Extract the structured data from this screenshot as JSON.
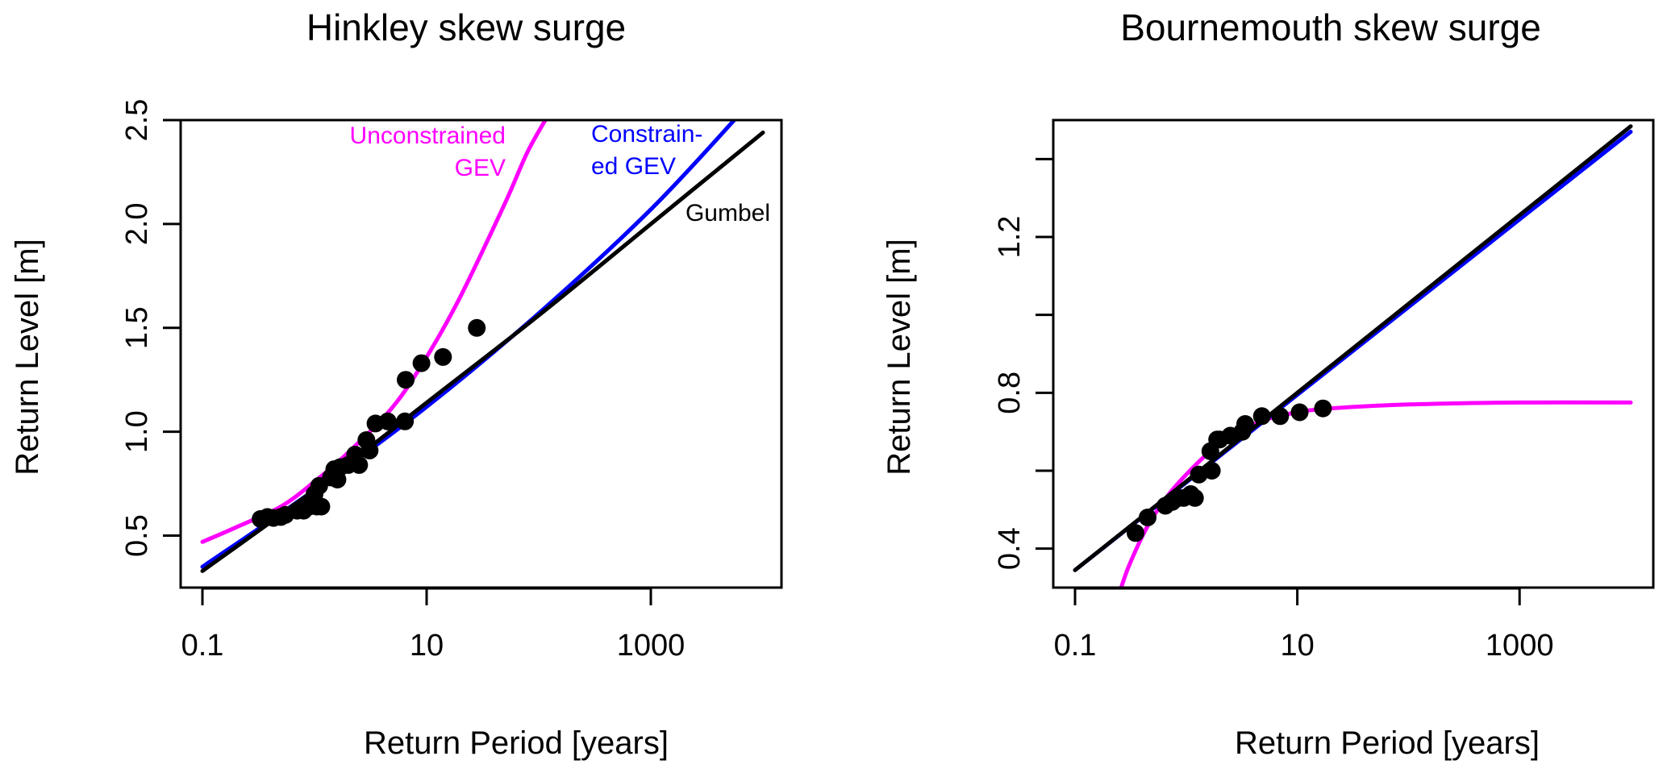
{
  "chart_data": [
    {
      "type": "line",
      "title": "Hinkley skew surge",
      "xlabel": "Return Period [years]",
      "ylabel": "Return Level [m]",
      "xscale": "log",
      "xlim": [
        0.1,
        10000
      ],
      "ylim": [
        0.25,
        2.5
      ],
      "xticks": [
        {
          "value": 0.1,
          "label": "0.1"
        },
        {
          "value": 10,
          "label": "10"
        },
        {
          "value": 1000,
          "label": "1000"
        }
      ],
      "yticks": [
        {
          "value": 0.5,
          "label": "0.5"
        },
        {
          "value": 1.0,
          "label": "1.0"
        },
        {
          "value": 1.5,
          "label": "1.5"
        },
        {
          "value": 2.0,
          "label": "2.0"
        },
        {
          "value": 2.5,
          "label": "2.5"
        }
      ],
      "series": [
        {
          "name": "Unconstrained GEV",
          "color": "#ff00ff",
          "x": [
            0.1,
            0.2,
            0.5,
            1,
            2,
            5,
            10,
            20,
            50,
            80,
            130
          ],
          "y": [
            0.47,
            0.54,
            0.64,
            0.76,
            0.9,
            1.12,
            1.36,
            1.65,
            2.1,
            2.35,
            2.55
          ]
        },
        {
          "name": "Constrained GEV",
          "color": "#0000ff",
          "x": [
            0.1,
            1,
            10,
            100,
            1000,
            6000
          ],
          "y": [
            0.35,
            0.72,
            1.12,
            1.57,
            2.07,
            2.52
          ]
        },
        {
          "name": "Gumbel",
          "color": "#000000",
          "x": [
            0.1,
            1,
            10,
            100,
            1000,
            10000
          ],
          "y": [
            0.33,
            0.72,
            1.14,
            1.56,
            2.0,
            2.44
          ]
        }
      ],
      "points": {
        "name": "Observed",
        "color": "#000000",
        "x": [
          0.33,
          0.38,
          0.43,
          0.5,
          0.55,
          0.7,
          0.8,
          0.9,
          1.0,
          1.05,
          1.1,
          1.15,
          1.4,
          1.5,
          1.6,
          1.7,
          2.0,
          2.3,
          2.5,
          2.9,
          3.1,
          3.5,
          4.5,
          6.4,
          6.5,
          9.0,
          14.0,
          28.0
        ],
        "y": [
          0.58,
          0.59,
          0.585,
          0.59,
          0.6,
          0.62,
          0.62,
          0.64,
          0.7,
          0.64,
          0.74,
          0.64,
          0.78,
          0.82,
          0.77,
          0.83,
          0.84,
          0.89,
          0.84,
          0.96,
          0.91,
          1.04,
          1.05,
          1.05,
          1.25,
          1.33,
          1.36,
          1.5
        ]
      },
      "annotations": [
        {
          "text": "Unconstrained",
          "series": "Unconstrained GEV"
        },
        {
          "text": "GEV",
          "series": "Unconstrained GEV"
        },
        {
          "text": "Constrain-",
          "series": "Constrained GEV"
        },
        {
          "text": "ed GEV",
          "series": "Constrained GEV"
        },
        {
          "text": "Gumbel",
          "series": "Gumbel"
        }
      ]
    },
    {
      "type": "line",
      "title": "Bournemouth skew surge",
      "xlabel": "Return Period [years]",
      "ylabel": "Return Level [m]",
      "xscale": "log",
      "xlim": [
        0.1,
        10000
      ],
      "ylim": [
        0.3,
        1.5
      ],
      "xticks": [
        {
          "value": 0.1,
          "label": "0.1"
        },
        {
          "value": 10,
          "label": "10"
        },
        {
          "value": 1000,
          "label": "1000"
        }
      ],
      "yticks": [
        {
          "value": 0.4,
          "label": "0.4"
        },
        {
          "value": 0.6,
          "label": ""
        },
        {
          "value": 0.8,
          "label": "0.8"
        },
        {
          "value": 1.0,
          "label": ""
        },
        {
          "value": 1.2,
          "label": "1.2"
        },
        {
          "value": 1.4,
          "label": ""
        }
      ],
      "series": [
        {
          "name": "Unconstrained GEV",
          "color": "#ff00ff",
          "x": [
            0.26,
            0.3,
            0.4,
            0.5,
            0.7,
            1,
            1.5,
            2,
            3,
            5,
            10,
            20,
            100,
            1000,
            10000
          ],
          "y": [
            0.3,
            0.35,
            0.43,
            0.48,
            0.54,
            0.59,
            0.64,
            0.67,
            0.7,
            0.73,
            0.75,
            0.76,
            0.77,
            0.775,
            0.775
          ]
        },
        {
          "name": "Constrained GEV",
          "color": "#0000ff",
          "x": [
            0.1,
            1,
            10,
            100,
            1000,
            10000
          ],
          "y": [
            0.345,
            0.57,
            0.795,
            1.02,
            1.245,
            1.47
          ]
        },
        {
          "name": "Gumbel",
          "color": "#000000",
          "x": [
            0.1,
            1,
            10,
            100,
            1000,
            10000
          ],
          "y": [
            0.345,
            0.572,
            0.8,
            1.028,
            1.256,
            1.484
          ]
        }
      ],
      "points": {
        "name": "Observed",
        "color": "#000000",
        "x": [
          0.35,
          0.45,
          0.65,
          0.75,
          0.85,
          0.95,
          1.1,
          1.2,
          1.3,
          1.65,
          1.7,
          1.9,
          2.0,
          2.5,
          3.2,
          3.4,
          4.8,
          7.0,
          10.5,
          17.0
        ],
        "y": [
          0.44,
          0.48,
          0.51,
          0.52,
          0.53,
          0.53,
          0.54,
          0.53,
          0.59,
          0.65,
          0.6,
          0.68,
          0.68,
          0.69,
          0.7,
          0.72,
          0.74,
          0.74,
          0.75,
          0.76
        ]
      }
    }
  ]
}
